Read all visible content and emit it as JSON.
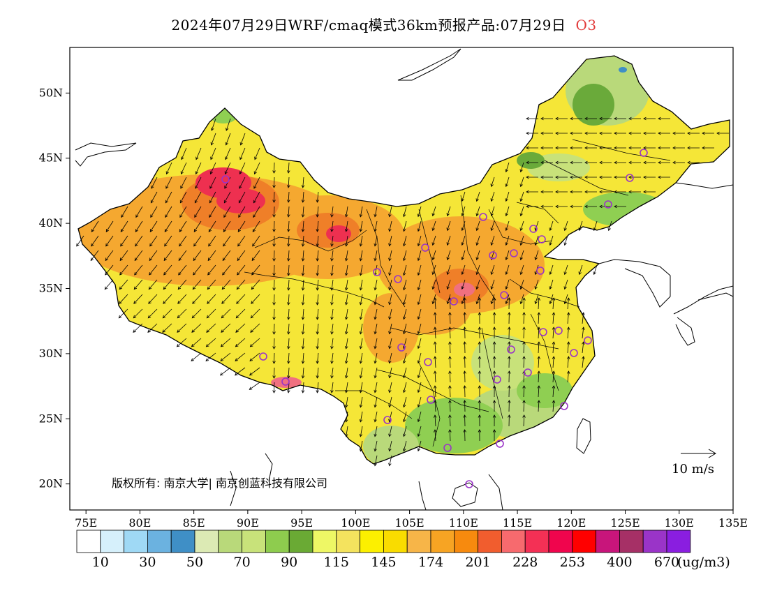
{
  "title": {
    "text": "2024年07月29日WRF/cmaq模式36km预报产品:07月29日",
    "species": "O3"
  },
  "map": {
    "lon_range": [
      73.5,
      135
    ],
    "lat_range": [
      18,
      53.5
    ],
    "lon_ticks": [
      "75E",
      "80E",
      "85E",
      "90E",
      "95E",
      "100E",
      "105E",
      "110E",
      "115E",
      "120E",
      "125E",
      "130E",
      "135E"
    ],
    "lat_ticks": [
      "20N",
      "25N",
      "30N",
      "35N",
      "40N",
      "45N",
      "50N"
    ],
    "copyright": "版权所有: 南京大学| 南京创蓝科技有限公司",
    "wind_reference": "10  m/s",
    "colors": {
      "land_base": "#f5e637",
      "green": "#8fcf52",
      "dark_green": "#6aaa3a",
      "orange": "#f5a830",
      "deep_orange": "#ef7f28",
      "red": "#ee3050",
      "pink": "#f07080"
    }
  },
  "colorbar": {
    "colors": [
      "#ffffff",
      "#d6f0fb",
      "#9fd9f5",
      "#6bb2e0",
      "#3f8fc6",
      "#dceab4",
      "#b9d97a",
      "#c8e27a",
      "#8ecc4e",
      "#6aaa34",
      "#eef765",
      "#f4e35e",
      "#fcf000",
      "#f9dc00",
      "#f7b548",
      "#f7a423",
      "#f78a0e",
      "#f15d2e",
      "#f76a6e",
      "#f43055",
      "#f0054d",
      "#ff0000",
      "#c8157b",
      "#a63066",
      "#9a34c8",
      "#8a1ee0"
    ],
    "labels": [
      "10",
      "30",
      "50",
      "70",
      "90",
      "115",
      "145",
      "174",
      "201",
      "228",
      "253",
      "400",
      "670"
    ],
    "unit": "(ug/m3)"
  }
}
